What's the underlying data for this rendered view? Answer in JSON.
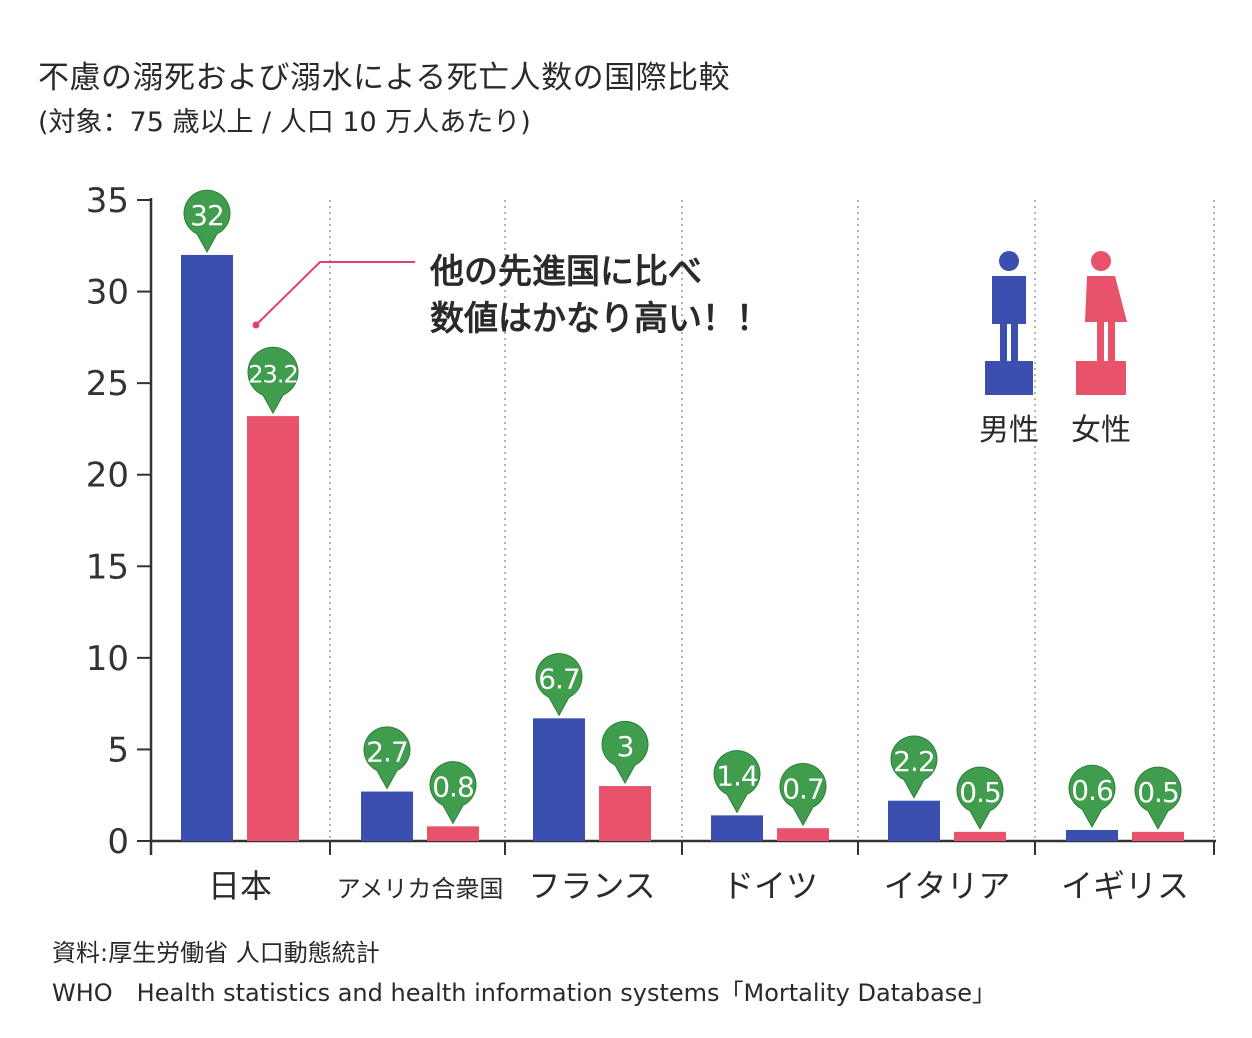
{
  "title": "不慮の溺死および溺水による死亡人数の国際比較",
  "subtitle": "(対象：75 歳以上 / 人口 10 万人あたり)",
  "source_line1": "資料:厚生労働省 人口動態統計",
  "source_line2": "WHO　Health statistics and health information systems「Mortality Database」",
  "annotation": {
    "line1": "他の先進国に比べ",
    "line2": "数値はかなり高い！！"
  },
  "colors": {
    "male": "#3a4fb0",
    "female": "#e8526a",
    "marker": "#3f9d4d",
    "annotation_line": "#e0407a",
    "grid": "#9a9a9a",
    "axis": "#333333"
  },
  "chart_data": {
    "type": "bar",
    "categories": [
      "日本",
      "アメリカ合衆国",
      "フランス",
      "ドイツ",
      "イタリア",
      "イギリス"
    ],
    "series": [
      {
        "name": "男性",
        "values": [
          32,
          2.7,
          6.7,
          1.4,
          2.2,
          0.6
        ],
        "labels": [
          "32",
          "2.7",
          "6.7",
          "1.4",
          "2.2",
          "0.6"
        ],
        "color": "#3a4fb0"
      },
      {
        "name": "女性",
        "values": [
          23.2,
          0.8,
          3,
          0.7,
          0.5,
          0.5
        ],
        "labels": [
          "23.2",
          "0.8",
          "3",
          "0.7",
          "0.5",
          "0.5"
        ],
        "color": "#e8526a"
      }
    ],
    "ylim": [
      0,
      35
    ],
    "yticks": [
      "0",
      "5",
      "10",
      "15",
      "20",
      "25",
      "30",
      "35"
    ],
    "grid": "vertical dotted separators",
    "legend": "top-right",
    "legend_icons": [
      "male-person-icon",
      "female-person-icon"
    ]
  }
}
